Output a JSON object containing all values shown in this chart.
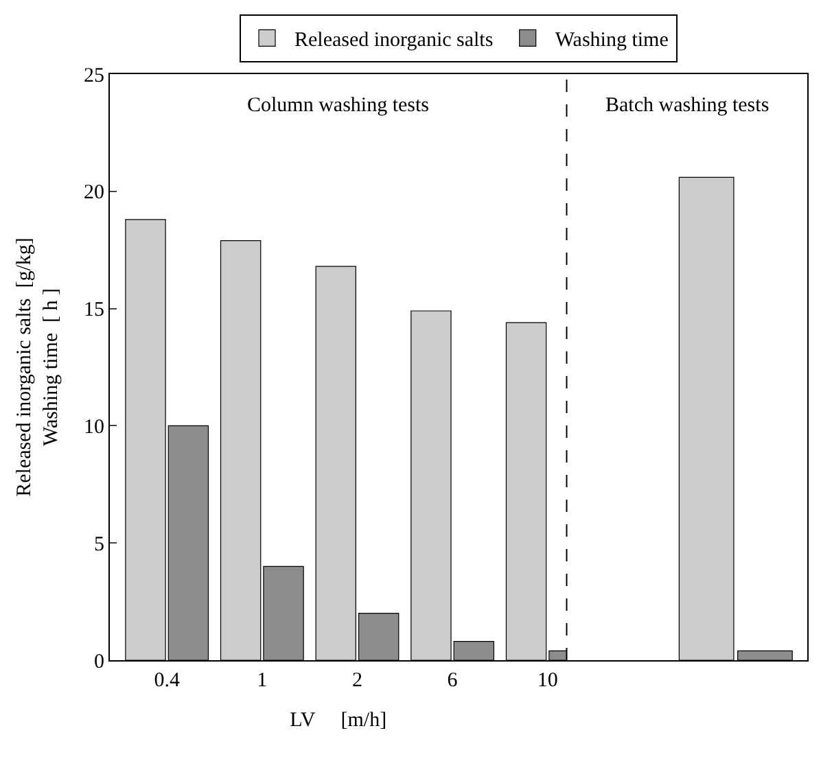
{
  "chart_data": [
    {
      "type": "bar",
      "xlabel": "LV     [m/h]",
      "ylabel": "Released inorganic salts  [g/kg]\nWashing time  [ h ]",
      "categories": [
        "0.4",
        "1",
        "2",
        "6",
        "10"
      ],
      "series": [
        {
          "name": "Released inorganic salts",
          "color": "#cccccc",
          "values": [
            18.8,
            17.9,
            16.8,
            14.9,
            14.4
          ]
        },
        {
          "name": "Washing time",
          "color": "#8c8c8c",
          "values": [
            10.0,
            4.0,
            2.0,
            0.8,
            0.4
          ]
        }
      ],
      "ylim": [
        0,
        25
      ],
      "yticks": [
        0,
        5,
        10,
        15,
        20,
        25
      ],
      "annotations": [
        "Column washing tests"
      ],
      "legend": "top"
    },
    {
      "type": "bar",
      "categories": [
        null
      ],
      "series": [
        {
          "color": "#cccccc",
          "values": [
            20.6
          ]
        },
        {
          "color": "#8c8c8c",
          "values": [
            0.4
          ]
        }
      ],
      "ylim": [
        0,
        25
      ],
      "yticks": [
        0,
        5,
        10,
        15,
        20,
        25
      ],
      "annotations": [
        "Batch washing tests"
      ],
      "tick_labels": false
    }
  ]
}
